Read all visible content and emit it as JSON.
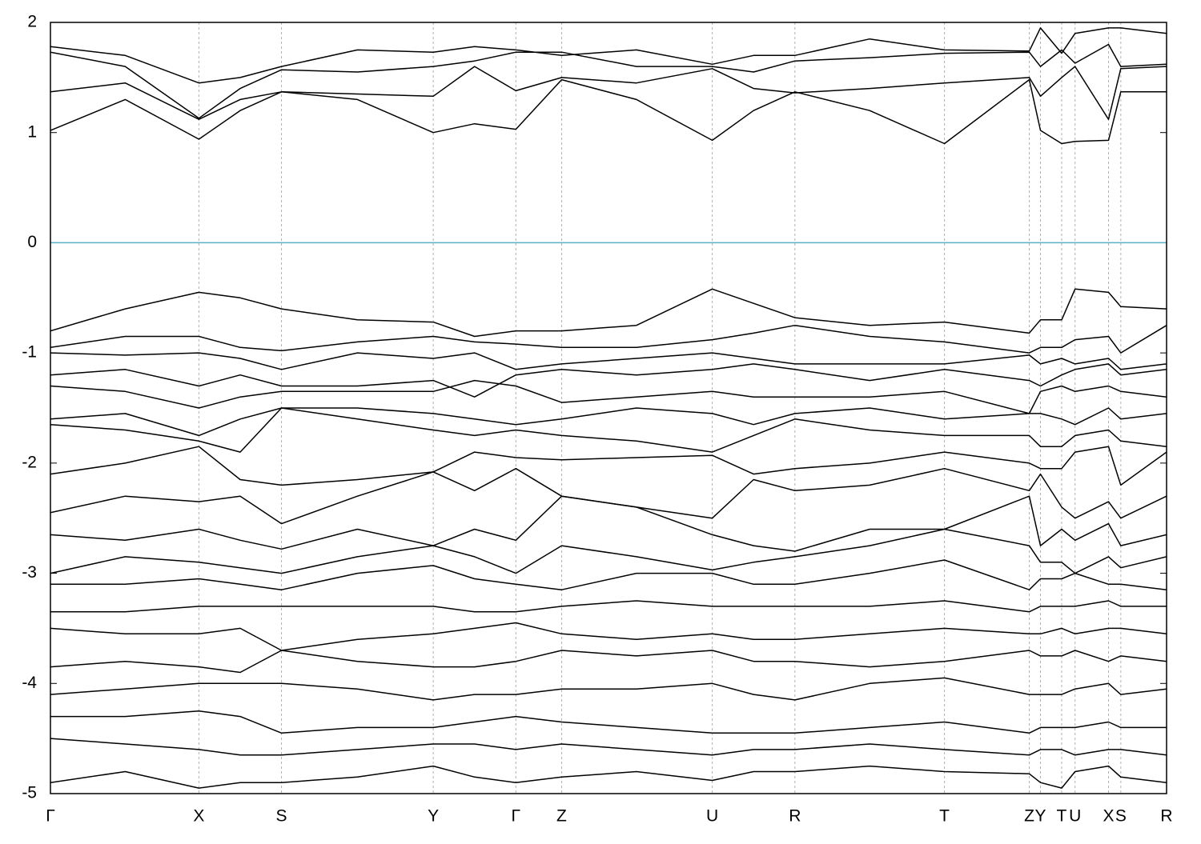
{
  "chart_data": {
    "type": "line",
    "x": [
      0,
      0.067,
      0.133,
      0.17,
      0.207,
      0.275,
      0.343,
      0.38,
      0.417,
      0.458,
      0.525,
      0.593,
      0.63,
      0.667,
      0.734,
      0.801,
      0.877,
      0.887,
      0.906,
      0.918,
      0.948,
      0.959,
      1.0
    ],
    "xlim": [
      0,
      1
    ],
    "xticks": [
      {
        "value": 0,
        "label": "Γ"
      },
      {
        "value": 0.133,
        "label": "X"
      },
      {
        "value": 0.207,
        "label": "S"
      },
      {
        "value": 0.343,
        "label": "Y"
      },
      {
        "value": 0.417,
        "label": "Γ"
      },
      {
        "value": 0.458,
        "label": "Z"
      },
      {
        "value": 0.593,
        "label": "U"
      },
      {
        "value": 0.667,
        "label": "R"
      },
      {
        "value": 0.801,
        "label": "T"
      },
      {
        "value": 0.877,
        "label": "Z"
      },
      {
        "value": 0.887,
        "label": "Y"
      },
      {
        "value": 0.906,
        "label": "T"
      },
      {
        "value": 0.918,
        "label": "U"
      },
      {
        "value": 0.948,
        "label": "X"
      },
      {
        "value": 0.959,
        "label": "S"
      },
      {
        "value": 1.0,
        "label": "R"
      }
    ],
    "ylim": [
      -5,
      2
    ],
    "yticks": [
      2,
      1,
      0,
      -1,
      -2,
      -3,
      -4,
      -5
    ],
    "grid_x": true,
    "zero_line": {
      "value": 0,
      "color": "#5ab0c8"
    },
    "series": [
      {
        "color": "#000000",
        "values": [
          1.02,
          1.3,
          0.94,
          1.2,
          1.37,
          1.3,
          1.0,
          1.08,
          1.03,
          1.48,
          1.3,
          0.93,
          1.2,
          1.37,
          1.2,
          0.9,
          1.48,
          1.02,
          0.9,
          0.92,
          0.93,
          1.37,
          1.37
        ]
      },
      {
        "color": "#000000",
        "values": [
          1.37,
          1.45,
          1.12,
          1.3,
          1.37,
          1.35,
          1.33,
          1.6,
          1.38,
          1.5,
          1.45,
          1.58,
          1.4,
          1.36,
          1.4,
          1.45,
          1.5,
          1.33,
          1.5,
          1.6,
          1.12,
          1.58,
          1.6
        ]
      },
      {
        "color": "#000000",
        "values": [
          1.73,
          1.6,
          1.13,
          1.4,
          1.57,
          1.55,
          1.6,
          1.65,
          1.73,
          1.73,
          1.6,
          1.6,
          1.55,
          1.65,
          1.68,
          1.72,
          1.73,
          1.6,
          1.75,
          1.63,
          1.8,
          1.6,
          1.62
        ]
      },
      {
        "color": "#000000",
        "values": [
          1.78,
          1.7,
          1.45,
          1.5,
          1.6,
          1.75,
          1.73,
          1.78,
          1.75,
          1.7,
          1.75,
          1.62,
          1.7,
          1.7,
          1.85,
          1.75,
          1.74,
          1.95,
          1.72,
          1.9,
          1.95,
          1.95,
          1.9
        ]
      },
      {
        "color": "#000000",
        "values": [
          -0.8,
          -0.6,
          -0.45,
          -0.5,
          -0.6,
          -0.7,
          -0.72,
          -0.85,
          -0.8,
          -0.8,
          -0.75,
          -0.42,
          -0.55,
          -0.68,
          -0.75,
          -0.72,
          -0.82,
          -0.7,
          -0.7,
          -0.42,
          -0.45,
          -0.58,
          -0.6
        ]
      },
      {
        "color": "#000000",
        "values": [
          -0.95,
          -0.85,
          -0.85,
          -0.95,
          -0.98,
          -0.9,
          -0.85,
          -0.9,
          -0.92,
          -0.95,
          -0.95,
          -0.88,
          -0.82,
          -0.75,
          -0.85,
          -0.9,
          -1.0,
          -0.95,
          -0.95,
          -0.88,
          -0.85,
          -1.0,
          -0.75
        ]
      },
      {
        "color": "#000000",
        "values": [
          -1.0,
          -1.02,
          -1.0,
          -1.05,
          -1.15,
          -1.0,
          -1.05,
          -1.0,
          -1.15,
          -1.1,
          -1.05,
          -1.0,
          -1.05,
          -1.1,
          -1.1,
          -1.1,
          -1.02,
          -1.1,
          -1.05,
          -1.1,
          -1.05,
          -1.15,
          -1.1
        ]
      },
      {
        "color": "#000000",
        "values": [
          -1.2,
          -1.15,
          -1.3,
          -1.2,
          -1.3,
          -1.3,
          -1.25,
          -1.4,
          -1.2,
          -1.15,
          -1.2,
          -1.15,
          -1.1,
          -1.15,
          -1.25,
          -1.15,
          -1.25,
          -1.3,
          -1.2,
          -1.15,
          -1.1,
          -1.2,
          -1.15
        ]
      },
      {
        "color": "#000000",
        "values": [
          -1.3,
          -1.35,
          -1.5,
          -1.4,
          -1.35,
          -1.35,
          -1.35,
          -1.25,
          -1.3,
          -1.45,
          -1.4,
          -1.35,
          -1.4,
          -1.4,
          -1.4,
          -1.35,
          -1.55,
          -1.35,
          -1.3,
          -1.35,
          -1.3,
          -1.35,
          -1.4
        ]
      },
      {
        "color": "#000000",
        "values": [
          -1.6,
          -1.55,
          -1.75,
          -1.6,
          -1.5,
          -1.5,
          -1.55,
          -1.6,
          -1.65,
          -1.6,
          -1.5,
          -1.55,
          -1.65,
          -1.55,
          -1.5,
          -1.6,
          -1.55,
          -1.55,
          -1.6,
          -1.65,
          -1.5,
          -1.6,
          -1.55
        ]
      },
      {
        "color": "#000000",
        "values": [
          -1.65,
          -1.7,
          -1.8,
          -1.9,
          -1.5,
          -1.6,
          -1.7,
          -1.75,
          -1.7,
          -1.75,
          -1.8,
          -1.9,
          -1.75,
          -1.6,
          -1.7,
          -1.75,
          -1.75,
          -1.85,
          -1.85,
          -1.75,
          -1.7,
          -1.8,
          -1.85
        ]
      },
      {
        "color": "#000000",
        "values": [
          -2.1,
          -2.0,
          -1.85,
          -2.15,
          -2.2,
          -2.15,
          -2.08,
          -1.9,
          -1.95,
          -1.97,
          -1.95,
          -1.93,
          -2.1,
          -2.05,
          -2.0,
          -1.9,
          -2.0,
          -2.05,
          -2.05,
          -1.9,
          -1.85,
          -2.2,
          -1.9
        ]
      },
      {
        "color": "#000000",
        "values": [
          -2.45,
          -2.3,
          -2.35,
          -2.3,
          -2.55,
          -2.3,
          -2.08,
          -2.25,
          -2.05,
          -2.3,
          -2.4,
          -2.5,
          -2.15,
          -2.25,
          -2.2,
          -2.05,
          -2.25,
          -2.1,
          -2.4,
          -2.5,
          -2.35,
          -2.5,
          -2.3
        ]
      },
      {
        "color": "#000000",
        "values": [
          -2.65,
          -2.7,
          -2.6,
          -2.7,
          -2.78,
          -2.6,
          -2.75,
          -2.6,
          -2.7,
          -2.3,
          -2.4,
          -2.65,
          -2.75,
          -2.8,
          -2.6,
          -2.6,
          -2.3,
          -2.75,
          -2.6,
          -2.7,
          -2.55,
          -2.75,
          -2.65
        ]
      },
      {
        "color": "#000000",
        "values": [
          -3.0,
          -2.85,
          -2.9,
          -2.95,
          -3.0,
          -2.85,
          -2.75,
          -2.85,
          -3.0,
          -2.75,
          -2.85,
          -2.97,
          -2.9,
          -2.85,
          -2.75,
          -2.6,
          -2.75,
          -2.9,
          -2.9,
          -3.0,
          -2.85,
          -2.95,
          -2.85
        ]
      },
      {
        "color": "#000000",
        "values": [
          -3.1,
          -3.1,
          -3.05,
          -3.1,
          -3.15,
          -3.0,
          -2.93,
          -3.05,
          -3.1,
          -3.15,
          -3.0,
          -3.0,
          -3.1,
          -3.1,
          -3.0,
          -2.88,
          -3.15,
          -3.05,
          -3.05,
          -3.0,
          -3.1,
          -3.1,
          -3.15
        ]
      },
      {
        "color": "#000000",
        "values": [
          -3.35,
          -3.35,
          -3.3,
          -3.3,
          -3.3,
          -3.3,
          -3.3,
          -3.35,
          -3.35,
          -3.3,
          -3.25,
          -3.3,
          -3.3,
          -3.3,
          -3.3,
          -3.25,
          -3.35,
          -3.3,
          -3.3,
          -3.3,
          -3.25,
          -3.3,
          -3.3
        ]
      },
      {
        "color": "#000000",
        "values": [
          -3.5,
          -3.55,
          -3.55,
          -3.5,
          -3.7,
          -3.6,
          -3.55,
          -3.5,
          -3.45,
          -3.55,
          -3.6,
          -3.55,
          -3.6,
          -3.6,
          -3.55,
          -3.5,
          -3.55,
          -3.55,
          -3.5,
          -3.55,
          -3.5,
          -3.5,
          -3.55
        ]
      },
      {
        "color": "#000000",
        "values": [
          -3.85,
          -3.8,
          -3.85,
          -3.9,
          -3.7,
          -3.8,
          -3.85,
          -3.85,
          -3.8,
          -3.7,
          -3.75,
          -3.7,
          -3.8,
          -3.8,
          -3.85,
          -3.8,
          -3.7,
          -3.75,
          -3.75,
          -3.7,
          -3.8,
          -3.75,
          -3.8
        ]
      },
      {
        "color": "#000000",
        "values": [
          -4.1,
          -4.05,
          -4.0,
          -4.0,
          -4.0,
          -4.05,
          -4.15,
          -4.1,
          -4.1,
          -4.05,
          -4.05,
          -4.0,
          -4.1,
          -4.15,
          -4.0,
          -3.95,
          -4.1,
          -4.1,
          -4.1,
          -4.05,
          -4.0,
          -4.1,
          -4.05
        ]
      },
      {
        "color": "#000000",
        "values": [
          -4.3,
          -4.3,
          -4.25,
          -4.3,
          -4.45,
          -4.4,
          -4.4,
          -4.35,
          -4.3,
          -4.35,
          -4.4,
          -4.45,
          -4.45,
          -4.45,
          -4.4,
          -4.35,
          -4.45,
          -4.4,
          -4.4,
          -4.4,
          -4.35,
          -4.4,
          -4.4
        ]
      },
      {
        "color": "#000000",
        "values": [
          -4.5,
          -4.55,
          -4.6,
          -4.65,
          -4.65,
          -4.6,
          -4.55,
          -4.55,
          -4.6,
          -4.55,
          -4.6,
          -4.65,
          -4.6,
          -4.6,
          -4.55,
          -4.6,
          -4.65,
          -4.6,
          -4.6,
          -4.65,
          -4.6,
          -4.6,
          -4.65
        ]
      },
      {
        "color": "#000000",
        "values": [
          -4.9,
          -4.8,
          -4.95,
          -4.9,
          -4.9,
          -4.85,
          -4.75,
          -4.85,
          -4.9,
          -4.85,
          -4.8,
          -4.88,
          -4.8,
          -4.8,
          -4.75,
          -4.8,
          -4.82,
          -4.9,
          -4.95,
          -4.8,
          -4.75,
          -4.85,
          -4.9
        ]
      }
    ]
  }
}
